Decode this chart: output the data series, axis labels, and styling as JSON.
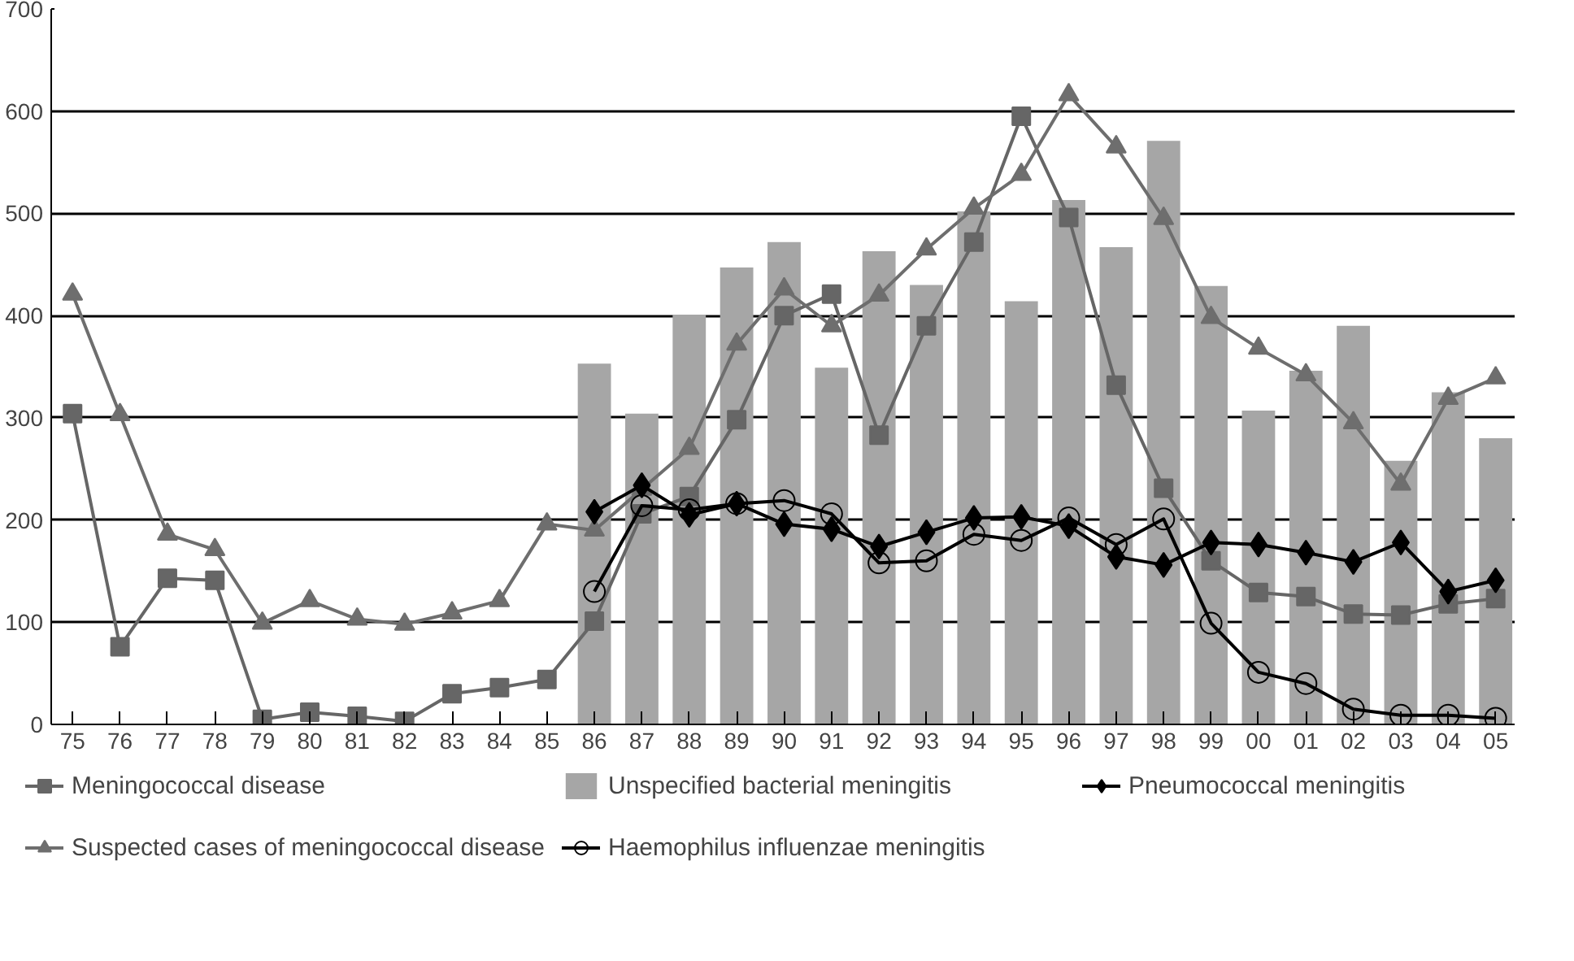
{
  "chart_data": {
    "type": "line",
    "categories": [
      "75",
      "76",
      "77",
      "78",
      "79",
      "80",
      "81",
      "82",
      "83",
      "84",
      "85",
      "86",
      "87",
      "88",
      "89",
      "90",
      "91",
      "92",
      "93",
      "94",
      "95",
      "96",
      "97",
      "98",
      "99",
      "00",
      "01",
      "02",
      "03",
      "04",
      "05"
    ],
    "ylim": [
      0,
      700
    ],
    "yticks": [
      0,
      100,
      200,
      300,
      400,
      500,
      600,
      700
    ],
    "grid": "y",
    "legend": "bottom",
    "series": [
      {
        "name": "Unspecified bacterial meningitis",
        "type": "bar",
        "color": "#a6a6a6",
        "values": [
          null,
          null,
          null,
          null,
          null,
          null,
          null,
          null,
          null,
          null,
          null,
          353,
          304,
          401,
          447,
          472,
          349,
          463,
          430,
          502,
          414,
          513,
          467,
          571,
          429,
          307,
          346,
          390,
          258,
          325,
          280
        ]
      },
      {
        "name": "Meningococcal disease",
        "color": "#666666",
        "marker": "square",
        "values": [
          304,
          76,
          143,
          141,
          5,
          12,
          8,
          3,
          30,
          36,
          44,
          101,
          206,
          223,
          298,
          400,
          421,
          283,
          390,
          472,
          595,
          496,
          332,
          231,
          160,
          129,
          125,
          108,
          107,
          118,
          123
        ]
      },
      {
        "name": "Suspected cases of meningococcal disease",
        "color": "#6e6e6e",
        "marker": "triangle",
        "values": [
          421,
          303,
          186,
          171,
          99,
          121,
          103,
          98,
          109,
          121,
          196,
          190,
          230,
          270,
          372,
          426,
          390,
          420,
          465,
          505,
          538,
          616,
          565,
          495,
          398,
          368,
          342,
          295,
          235,
          319,
          339
        ]
      },
      {
        "name": "Pneumococcal meningitis",
        "color": "#000000",
        "marker": "diamond",
        "values": [
          null,
          null,
          null,
          null,
          null,
          null,
          null,
          null,
          null,
          null,
          null,
          208,
          234,
          205,
          216,
          196,
          191,
          174,
          188,
          202,
          203,
          194,
          164,
          156,
          178,
          176,
          168,
          159,
          178,
          130,
          141
        ]
      },
      {
        "name": "Haemophilus influenzae meningitis",
        "color": "#000000",
        "marker": "circle",
        "values": [
          null,
          null,
          null,
          null,
          null,
          null,
          null,
          null,
          null,
          null,
          null,
          130,
          214,
          210,
          216,
          219,
          206,
          158,
          160,
          186,
          180,
          202,
          176,
          201,
          99,
          51,
          40,
          15,
          9,
          9,
          6
        ]
      }
    ]
  }
}
